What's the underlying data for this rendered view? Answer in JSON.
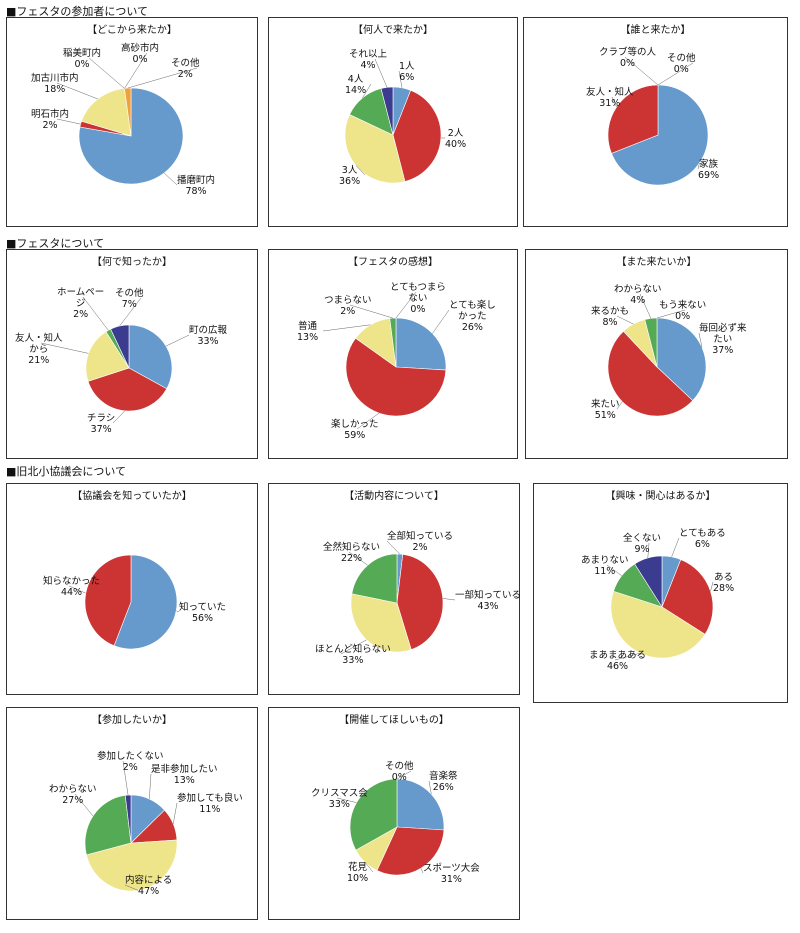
{
  "sections": {
    "participants": "■フェスタの参加者について",
    "festa": "■フェスタについて",
    "council": "■旧北小協議会について"
  },
  "colors": {
    "blue": "#6699cc",
    "red": "#cc3333",
    "yellow": "#eee48a",
    "green": "#55aa55",
    "navy": "#3b3b8f",
    "orange": "#f0a040"
  },
  "chart_data": [
    {
      "id": "where",
      "type": "pie",
      "title": "【どこから来たか】",
      "slices": [
        {
          "label": "播磨町内",
          "value": 78,
          "pct": "78%",
          "color": "blue"
        },
        {
          "label": "明石市内",
          "value": 2,
          "pct": "2%",
          "color": "red"
        },
        {
          "label": "加古川市内",
          "value": 18,
          "pct": "18%",
          "color": "yellow"
        },
        {
          "label": "稲美町内",
          "value": 0,
          "pct": "0%",
          "color": "green"
        },
        {
          "label": "高砂市内",
          "value": 0,
          "pct": "0%",
          "color": "navy"
        },
        {
          "label": "その他",
          "value": 2,
          "pct": "2%",
          "color": "orange"
        }
      ]
    },
    {
      "id": "how-many",
      "type": "pie",
      "title": "【何人で来たか】",
      "slices": [
        {
          "label": "1人",
          "value": 6,
          "pct": "6%",
          "color": "blue"
        },
        {
          "label": "2人",
          "value": 40,
          "pct": "40%",
          "color": "red"
        },
        {
          "label": "3人",
          "value": 36,
          "pct": "36%",
          "color": "yellow"
        },
        {
          "label": "4人",
          "value": 14,
          "pct": "14%",
          "color": "green"
        },
        {
          "label": "それ以上",
          "value": 4,
          "pct": "4%",
          "color": "navy"
        }
      ]
    },
    {
      "id": "with-whom",
      "type": "pie",
      "title": "【誰と来たか】",
      "slices": [
        {
          "label": "家族",
          "value": 69,
          "pct": "69%",
          "color": "blue"
        },
        {
          "label": "友人・知人",
          "value": 31,
          "pct": "31%",
          "color": "red"
        },
        {
          "label": "クラブ等の人",
          "value": 0,
          "pct": "0%",
          "color": "yellow"
        },
        {
          "label": "その他",
          "value": 0,
          "pct": "0%",
          "color": "green"
        }
      ]
    },
    {
      "id": "how-known",
      "type": "pie",
      "title": "【何で知ったか】",
      "slices": [
        {
          "label": "町の広報",
          "value": 33,
          "pct": "33%",
          "color": "blue"
        },
        {
          "label": "チラシ",
          "value": 37,
          "pct": "37%",
          "color": "red"
        },
        {
          "label": "友人・知人から",
          "value": 21,
          "pct": "21%",
          "color": "yellow"
        },
        {
          "label": "ホームページ",
          "value": 2,
          "pct": "2%",
          "color": "green"
        },
        {
          "label": "その他",
          "value": 7,
          "pct": "7%",
          "color": "navy"
        }
      ]
    },
    {
      "id": "impression",
      "type": "pie",
      "title": "【フェスタの感想】",
      "slices": [
        {
          "label": "とても楽しかった",
          "value": 26,
          "pct": "26%",
          "color": "blue"
        },
        {
          "label": "楽しかった",
          "value": 59,
          "pct": "59%",
          "color": "red"
        },
        {
          "label": "普通",
          "value": 13,
          "pct": "13%",
          "color": "yellow"
        },
        {
          "label": "つまらない",
          "value": 2,
          "pct": "2%",
          "color": "green"
        },
        {
          "label": "とてもつまらない",
          "value": 0,
          "pct": "0%",
          "color": "navy"
        }
      ]
    },
    {
      "id": "come-again",
      "type": "pie",
      "title": "【また来たいか】",
      "slices": [
        {
          "label": "毎回必ず来たい",
          "value": 37,
          "pct": "37%",
          "color": "blue"
        },
        {
          "label": "来たい",
          "value": 51,
          "pct": "51%",
          "color": "red"
        },
        {
          "label": "来るかも",
          "value": 8,
          "pct": "8%",
          "color": "yellow"
        },
        {
          "label": "わからない",
          "value": 4,
          "pct": "4%",
          "color": "green"
        },
        {
          "label": "もう来ない",
          "value": 0,
          "pct": "0%",
          "color": "navy"
        }
      ]
    },
    {
      "id": "know-council",
      "type": "pie",
      "title": "【協議会を知っていたか】",
      "slices": [
        {
          "label": "知っていた",
          "value": 56,
          "pct": "56%",
          "color": "blue"
        },
        {
          "label": "知らなかった",
          "value": 44,
          "pct": "44%",
          "color": "red"
        }
      ]
    },
    {
      "id": "activities",
      "type": "pie",
      "title": "【活動内容について】",
      "slices": [
        {
          "label": "全部知っている",
          "value": 2,
          "pct": "2%",
          "color": "blue"
        },
        {
          "label": "一部知っている",
          "value": 43,
          "pct": "43%",
          "color": "red"
        },
        {
          "label": "ほとんど知らない",
          "value": 33,
          "pct": "33%",
          "color": "yellow"
        },
        {
          "label": "全然知らない",
          "value": 22,
          "pct": "22%",
          "color": "green"
        }
      ]
    },
    {
      "id": "interest",
      "type": "pie",
      "title": "【興味・関心はあるか】",
      "slices": [
        {
          "label": "とてもある",
          "value": 6,
          "pct": "6%",
          "color": "blue"
        },
        {
          "label": "ある",
          "value": 28,
          "pct": "28%",
          "color": "red"
        },
        {
          "label": "まあまあある",
          "value": 46,
          "pct": "46%",
          "color": "yellow"
        },
        {
          "label": "あまりない",
          "value": 11,
          "pct": "11%",
          "color": "green"
        },
        {
          "label": "全くない",
          "value": 9,
          "pct": "9%",
          "color": "navy"
        }
      ]
    },
    {
      "id": "participate",
      "type": "pie",
      "title": "【参加したいか】",
      "slices": [
        {
          "label": "是非参加したい",
          "value": 13,
          "pct": "13%",
          "color": "blue"
        },
        {
          "label": "参加しても良い",
          "value": 11,
          "pct": "11%",
          "color": "red"
        },
        {
          "label": "内容による",
          "value": 47,
          "pct": "47%",
          "color": "yellow"
        },
        {
          "label": "わからない",
          "value": 27,
          "pct": "27%",
          "color": "green"
        },
        {
          "label": "参加したくない",
          "value": 2,
          "pct": "2%",
          "color": "navy"
        }
      ]
    },
    {
      "id": "wishes",
      "type": "pie",
      "title": "【開催してほしいもの】",
      "slices": [
        {
          "label": "音楽祭",
          "value": 26,
          "pct": "26%",
          "color": "blue"
        },
        {
          "label": "スポーツ大会",
          "value": 31,
          "pct": "31%",
          "color": "red"
        },
        {
          "label": "花見",
          "value": 10,
          "pct": "10%",
          "color": "yellow"
        },
        {
          "label": "クリスマス会",
          "value": 33,
          "pct": "33%",
          "color": "green"
        },
        {
          "label": "その他",
          "value": 0,
          "pct": "0%",
          "color": "navy"
        }
      ]
    }
  ]
}
